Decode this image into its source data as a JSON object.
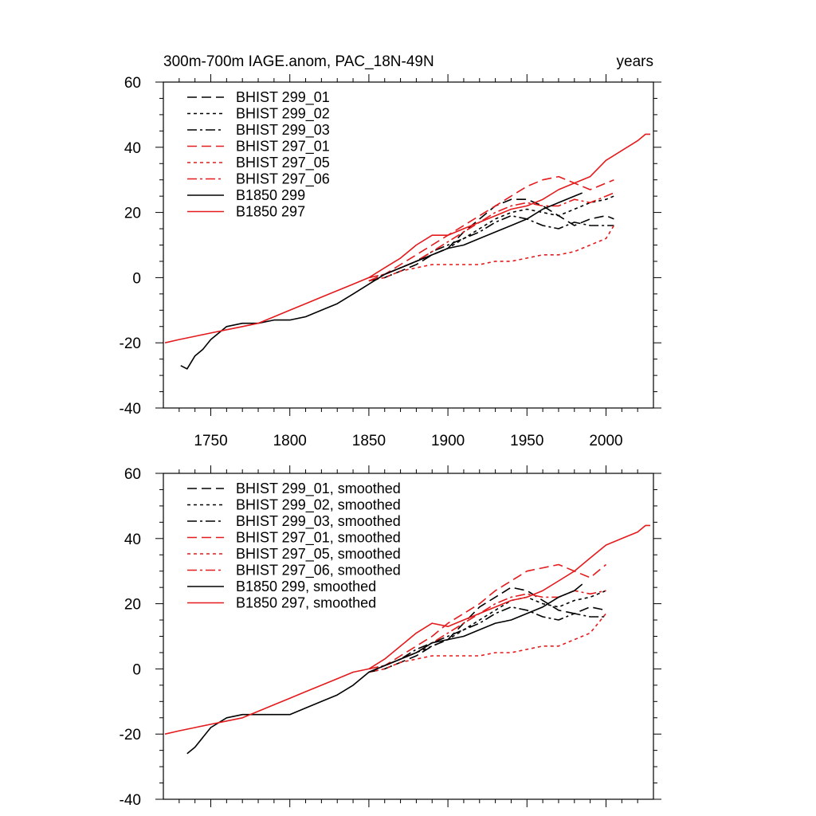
{
  "chart_data": [
    {
      "type": "line",
      "title": "300m-700m IAGE.anom, PAC_18N-49N",
      "title_right": "years",
      "xlim": [
        1720,
        2030
      ],
      "ylim": [
        -40,
        60
      ],
      "xticks": [
        1750,
        1800,
        1850,
        1900,
        1950,
        2000
      ],
      "yticks": [
        -40,
        -20,
        0,
        20,
        40,
        60
      ],
      "show_xtick_labels": true,
      "legend_position": "top-left",
      "series": [
        {
          "name": "BHIST 299_01",
          "color": "#000000",
          "dash": "12,6",
          "x": [
            1850,
            1860,
            1870,
            1880,
            1890,
            1900,
            1910,
            1920,
            1930,
            1940,
            1950,
            1960,
            1970,
            1980,
            1990,
            2000,
            2005
          ],
          "y": [
            -1,
            0,
            2,
            4,
            7,
            9,
            14,
            18,
            22,
            24,
            24,
            22,
            19,
            16,
            18,
            19,
            18
          ]
        },
        {
          "name": "BHIST 299_02",
          "color": "#000000",
          "dash": "4,4",
          "x": [
            1850,
            1860,
            1870,
            1880,
            1890,
            1900,
            1910,
            1920,
            1930,
            1940,
            1950,
            1960,
            1970,
            1980,
            1990,
            2000,
            2005
          ],
          "y": [
            0,
            1,
            3,
            5,
            7,
            9,
            12,
            15,
            18,
            20,
            21,
            20,
            19,
            21,
            23,
            24,
            25
          ]
        },
        {
          "name": "BHIST 299_03",
          "color": "#000000",
          "dash": "12,4,3,4",
          "x": [
            1850,
            1860,
            1870,
            1880,
            1890,
            1900,
            1910,
            1920,
            1930,
            1940,
            1950,
            1960,
            1970,
            1980,
            1990,
            2000,
            2005
          ],
          "y": [
            -1,
            1,
            3,
            5,
            8,
            10,
            12,
            14,
            17,
            19,
            18,
            16,
            15,
            17,
            16,
            16,
            16
          ]
        },
        {
          "name": "BHIST 297_01",
          "color": "#e41a1c",
          "dash": "12,6",
          "x": [
            1850,
            1860,
            1870,
            1880,
            1890,
            1900,
            1910,
            1920,
            1930,
            1940,
            1950,
            1960,
            1970,
            1980,
            1990,
            2000,
            2005
          ],
          "y": [
            -1,
            1,
            4,
            7,
            10,
            13,
            16,
            19,
            22,
            25,
            28,
            30,
            31,
            29,
            27,
            29,
            30
          ]
        },
        {
          "name": "BHIST 297_05",
          "color": "#e41a1c",
          "dash": "4,4",
          "x": [
            1850,
            1860,
            1870,
            1880,
            1890,
            1900,
            1910,
            1920,
            1930,
            1940,
            1950,
            1960,
            1970,
            1980,
            1990,
            2000,
            2005
          ],
          "y": [
            -1,
            0,
            2,
            3,
            4,
            4,
            4,
            4,
            5,
            5,
            6,
            7,
            7,
            8,
            10,
            12,
            16
          ]
        },
        {
          "name": "BHIST 297_06",
          "color": "#e41a1c",
          "dash": "12,4,3,4",
          "x": [
            1850,
            1860,
            1870,
            1880,
            1890,
            1900,
            1910,
            1920,
            1930,
            1940,
            1950,
            1960,
            1970,
            1980,
            1990,
            2000,
            2005
          ],
          "y": [
            0,
            1,
            3,
            5,
            8,
            11,
            14,
            17,
            20,
            22,
            23,
            22,
            22,
            24,
            23,
            25,
            26
          ]
        },
        {
          "name": "B1850 299",
          "color": "#000000",
          "dash": "",
          "x": [
            1731,
            1735,
            1740,
            1745,
            1750,
            1760,
            1770,
            1780,
            1790,
            1800,
            1810,
            1820,
            1830,
            1840,
            1850,
            1860,
            1870,
            1880,
            1890,
            1900,
            1910,
            1920,
            1930,
            1940,
            1950,
            1960,
            1970,
            1980,
            1985
          ],
          "y": [
            -27,
            -28,
            -24,
            -22,
            -19,
            -15,
            -14,
            -14,
            -13,
            -13,
            -12,
            -10,
            -8,
            -5,
            -2,
            1,
            3,
            5,
            7,
            9,
            10,
            12,
            14,
            16,
            18,
            21,
            23,
            25,
            26
          ]
        },
        {
          "name": "B1850 297",
          "color": "#e41a1c",
          "dash": "",
          "x": [
            1721,
            1730,
            1740,
            1750,
            1760,
            1770,
            1780,
            1790,
            1800,
            1810,
            1820,
            1830,
            1840,
            1850,
            1860,
            1870,
            1880,
            1890,
            1900,
            1910,
            1920,
            1930,
            1940,
            1950,
            1960,
            1970,
            1980,
            1990,
            2000,
            2010,
            2020,
            2025,
            2028
          ],
          "y": [
            -20,
            -19,
            -18,
            -17,
            -16,
            -15,
            -14,
            -12,
            -10,
            -8,
            -6,
            -4,
            -2,
            0,
            3,
            6,
            10,
            13,
            13,
            15,
            17,
            19,
            21,
            22,
            24,
            27,
            29,
            31,
            36,
            39,
            42,
            44,
            44
          ]
        }
      ]
    },
    {
      "type": "line",
      "title": "",
      "xlim": [
        1720,
        2030
      ],
      "ylim": [
        -40,
        60
      ],
      "xticks": [
        1750,
        1800,
        1850,
        1900,
        1950,
        2000
      ],
      "yticks": [
        -40,
        -20,
        0,
        20,
        40,
        60
      ],
      "show_xtick_labels": false,
      "legend_position": "top-left",
      "series": [
        {
          "name": "BHIST 299_01, smoothed",
          "color": "#000000",
          "dash": "12,6",
          "x": [
            1850,
            1860,
            1870,
            1880,
            1890,
            1900,
            1910,
            1920,
            1930,
            1940,
            1950,
            1960,
            1970,
            1980,
            1990,
            2000
          ],
          "y": [
            -1,
            0,
            2,
            4,
            7,
            9,
            14,
            19,
            22,
            25,
            24,
            21,
            18,
            17,
            19,
            18
          ]
        },
        {
          "name": "BHIST 299_02, smoothed",
          "color": "#000000",
          "dash": "4,4",
          "x": [
            1850,
            1860,
            1870,
            1880,
            1890,
            1900,
            1910,
            1920,
            1930,
            1940,
            1950,
            1960,
            1970,
            1980,
            1990,
            2000
          ],
          "y": [
            0,
            1,
            3,
            5,
            7,
            9,
            12,
            15,
            18,
            21,
            22,
            20,
            19,
            21,
            22,
            24
          ]
        },
        {
          "name": "BHIST 299_03, smoothed",
          "color": "#000000",
          "dash": "12,4,3,4",
          "x": [
            1850,
            1860,
            1870,
            1880,
            1890,
            1900,
            1910,
            1920,
            1930,
            1940,
            1950,
            1960,
            1970,
            1980,
            1990,
            2000
          ],
          "y": [
            -1,
            1,
            3,
            6,
            8,
            10,
            12,
            14,
            17,
            19,
            18,
            16,
            15,
            17,
            16,
            16
          ]
        },
        {
          "name": "BHIST 297_01, smoothed",
          "color": "#e41a1c",
          "dash": "12,6",
          "x": [
            1850,
            1860,
            1870,
            1880,
            1890,
            1900,
            1910,
            1920,
            1930,
            1940,
            1950,
            1960,
            1970,
            1980,
            1990,
            2000
          ],
          "y": [
            -1,
            1,
            4,
            7,
            10,
            14,
            17,
            20,
            24,
            27,
            30,
            31,
            32,
            30,
            28,
            32
          ]
        },
        {
          "name": "BHIST 297_05, smoothed",
          "color": "#e41a1c",
          "dash": "4,4",
          "x": [
            1850,
            1860,
            1870,
            1880,
            1890,
            1900,
            1910,
            1920,
            1930,
            1940,
            1950,
            1960,
            1970,
            1980,
            1990,
            2000
          ],
          "y": [
            -1,
            0,
            2,
            3,
            4,
            4,
            4,
            4,
            5,
            5,
            6,
            7,
            7,
            9,
            11,
            17
          ]
        },
        {
          "name": "BHIST 297_06, smoothed",
          "color": "#e41a1c",
          "dash": "12,4,3,4",
          "x": [
            1850,
            1860,
            1870,
            1880,
            1890,
            1900,
            1910,
            1920,
            1930,
            1940,
            1950,
            1960,
            1970,
            1980,
            1990,
            2000
          ],
          "y": [
            0,
            1,
            3,
            5,
            8,
            11,
            14,
            17,
            20,
            22,
            23,
            22,
            22,
            24,
            23,
            24
          ]
        },
        {
          "name": "B1850 299, smoothed",
          "color": "#000000",
          "dash": "",
          "x": [
            1735,
            1740,
            1745,
            1750,
            1760,
            1770,
            1780,
            1790,
            1800,
            1810,
            1820,
            1830,
            1840,
            1850,
            1860,
            1870,
            1880,
            1890,
            1900,
            1910,
            1920,
            1930,
            1940,
            1950,
            1960,
            1970,
            1980,
            1985
          ],
          "y": [
            -26,
            -24,
            -21,
            -18,
            -15,
            -14,
            -14,
            -14,
            -14,
            -12,
            -10,
            -8,
            -5,
            -1,
            1,
            3,
            5,
            8,
            9,
            10,
            12,
            14,
            15,
            17,
            19,
            22,
            24,
            26
          ]
        },
        {
          "name": "B1850 297, smoothed",
          "color": "#e41a1c",
          "dash": "",
          "x": [
            1721,
            1730,
            1740,
            1750,
            1760,
            1770,
            1780,
            1790,
            1800,
            1810,
            1820,
            1830,
            1840,
            1850,
            1860,
            1870,
            1880,
            1890,
            1900,
            1910,
            1920,
            1930,
            1940,
            1950,
            1960,
            1970,
            1980,
            1990,
            2000,
            2010,
            2020,
            2025,
            2028
          ],
          "y": [
            -20,
            -19,
            -18,
            -17,
            -16,
            -15,
            -13,
            -11,
            -9,
            -7,
            -5,
            -3,
            -1,
            0,
            3,
            7,
            11,
            14,
            13,
            15,
            17,
            19,
            21,
            22,
            24,
            27,
            30,
            34,
            38,
            40,
            42,
            44,
            44
          ]
        }
      ]
    }
  ]
}
